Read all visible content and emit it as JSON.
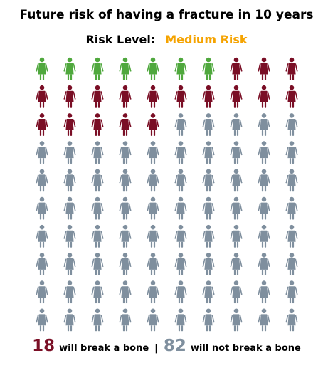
{
  "title": "Future risk of having a fracture in 10 years",
  "risk": {
    "label": "Risk Level:",
    "value": "Medium Risk",
    "value_color": "#f5a300"
  },
  "chart_data": {
    "type": "pictogram",
    "total": 100,
    "rows": 10,
    "columns": 10,
    "icon": "female-person-icon",
    "categories": [
      {
        "key": "highlight_green",
        "count": 7,
        "color": "#4fa83d"
      },
      {
        "key": "break",
        "count": 18,
        "color": "#7a0e25"
      },
      {
        "key": "no_break",
        "count": 82,
        "color": "#7f8f9e"
      }
    ],
    "fill_order": "row-major",
    "layout_note_cells": "green covers first 7 cells of row 1; break covers cells 8-25 after green counted within; remaining cells grey"
  },
  "footer": {
    "break_count": "18",
    "break_text": "will break a bone",
    "separator": "|",
    "safe_count": "82",
    "safe_text": "will not break a bone",
    "break_color": "#7a0e25",
    "safe_color": "#7f8f9e"
  }
}
